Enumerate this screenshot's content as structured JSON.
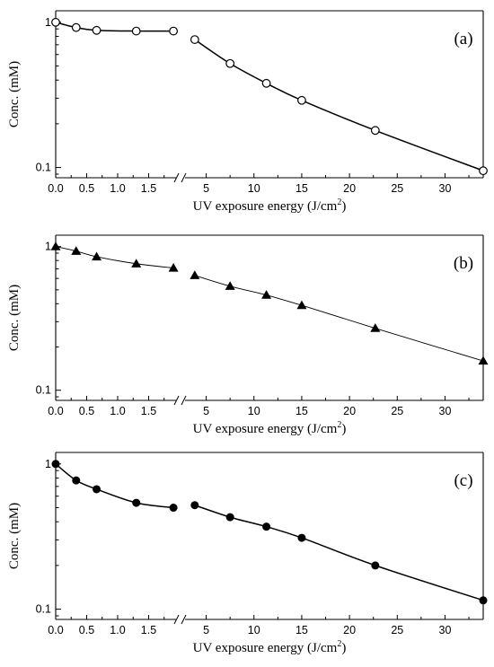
{
  "chart_data": [
    {
      "type": "scatter",
      "panel_label": "(a)",
      "marker": "open-circle",
      "ylabel": "Conc. (mM)",
      "xlabel": "UV exposure energy (J/cm",
      "xlabel_sup": "2",
      "y_scale": "log",
      "ylim": [
        0.085,
        1.2
      ],
      "x_axis_broken": true,
      "x_segment_left": {
        "xlim": [
          0,
          2
        ],
        "ticks": [
          "0.0",
          "0.5",
          "1.0",
          "1.5"
        ]
      },
      "x_segment_right": {
        "xlim": [
          2.5,
          34
        ],
        "ticks": [
          "5",
          "10",
          "15",
          "20",
          "25",
          "30"
        ]
      },
      "y_ticks": [
        "1",
        "0.1"
      ],
      "series": [
        {
          "x": [
            0,
            0.33,
            0.66,
            1.3,
            1.9,
            3.8,
            7.5,
            11.3,
            15,
            22.7,
            34
          ],
          "y": [
            1.0,
            0.92,
            0.88,
            0.87,
            0.87,
            0.76,
            0.52,
            0.38,
            0.29,
            0.18,
            0.095
          ]
        }
      ]
    },
    {
      "type": "scatter",
      "panel_label": "(b)",
      "marker": "filled-triangle",
      "ylabel": "Conc. (mM)",
      "xlabel": "UV exposure energy (J/cm",
      "xlabel_sup": "2",
      "y_scale": "log",
      "ylim": [
        0.085,
        1.2
      ],
      "x_axis_broken": true,
      "x_segment_left": {
        "xlim": [
          0,
          2
        ],
        "ticks": [
          "0.0",
          "0.5",
          "1.0",
          "1.5"
        ]
      },
      "x_segment_right": {
        "xlim": [
          2.5,
          34
        ],
        "ticks": [
          "5",
          "10",
          "15",
          "20",
          "25",
          "30"
        ]
      },
      "y_ticks": [
        "1",
        "0.1"
      ],
      "series": [
        {
          "x": [
            0,
            0.33,
            0.66,
            1.3,
            1.9,
            3.8,
            7.5,
            11.3,
            15,
            22.7,
            34
          ],
          "y": [
            1.0,
            0.93,
            0.85,
            0.76,
            0.71,
            0.63,
            0.53,
            0.46,
            0.39,
            0.27,
            0.16
          ]
        }
      ]
    },
    {
      "type": "scatter",
      "panel_label": "(c)",
      "marker": "filled-circle",
      "ylabel": "Conc. (mM)",
      "xlabel": "UV exposure energy (J/cm",
      "xlabel_sup": "2",
      "y_scale": "log",
      "ylim": [
        0.085,
        1.2
      ],
      "x_axis_broken": true,
      "x_segment_left": {
        "xlim": [
          0,
          2
        ],
        "ticks": [
          "0.0",
          "0.5",
          "1.0",
          "1.5"
        ]
      },
      "x_segment_right": {
        "xlim": [
          2.5,
          34
        ],
        "ticks": [
          "5",
          "10",
          "15",
          "20",
          "25",
          "30"
        ]
      },
      "y_ticks": [
        "1",
        "0.1"
      ],
      "series": [
        {
          "x": [
            0,
            0.33,
            0.66,
            1.3,
            1.9,
            3.8,
            7.5,
            11.3,
            15,
            22.7,
            34
          ],
          "y": [
            1.0,
            0.77,
            0.67,
            0.54,
            0.5,
            0.52,
            0.43,
            0.37,
            0.31,
            0.2,
            0.115
          ]
        }
      ]
    }
  ]
}
